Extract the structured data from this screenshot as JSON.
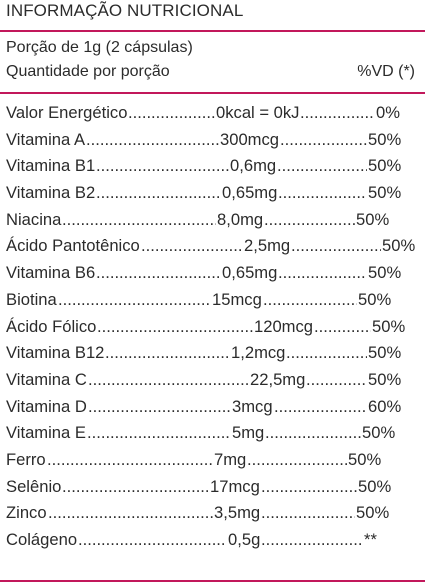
{
  "title": "INFORMAÇÃO NUTRICIONAL",
  "portion": "Porção de 1g (2 cápsulas)",
  "quantity_header": "Quantidade por porção",
  "vd_header": "%VD (*)",
  "rows": [
    {
      "name": "Valor Energético",
      "amount": "0kcal = 0kJ",
      "vd": "0%"
    },
    {
      "name": "Vitamina A",
      "amount": "300mcg",
      "vd": "50%"
    },
    {
      "name": "Vitamina B1",
      "amount": "0,6mg",
      "vd": "50%"
    },
    {
      "name": "Vitamina B2",
      "amount": "0,65mg",
      "vd": "50%"
    },
    {
      "name": "Niacina",
      "amount": "8,0mg",
      "vd": "50%"
    },
    {
      "name": "Ácido Pantotênico",
      "amount": "2,5mg",
      "vd": "50%"
    },
    {
      "name": "Vitamina B6",
      "amount": "0,65mg",
      "vd": "50%"
    },
    {
      "name": "Biotina",
      "amount": "15mcg",
      "vd": "50%"
    },
    {
      "name": "Ácido Fólico",
      "amount": "120mcg",
      "vd": "50%"
    },
    {
      "name": "Vitamina B12",
      "amount": "1,2mcg",
      "vd": "50%"
    },
    {
      "name": "Vitamina C",
      "amount": "22,5mg",
      "vd": "50%"
    },
    {
      "name": "Vitamina D",
      "amount": "3mcg",
      "vd": "60%"
    },
    {
      "name": "Vitamina E",
      "amount": "5mg",
      "vd": "50%"
    },
    {
      "name": "Ferro",
      "amount": "7mg",
      "vd": "50%"
    },
    {
      "name": "Selênio",
      "amount": "17mcg",
      "vd": "50%"
    },
    {
      "name": "Zinco",
      "amount": "3,5mg",
      "vd": "50%"
    },
    {
      "name": "Colágeno",
      "amount": "0,5g",
      "vd": "**"
    }
  ],
  "colors": {
    "rule": "#c2185b",
    "text": "#2b2b2b"
  }
}
